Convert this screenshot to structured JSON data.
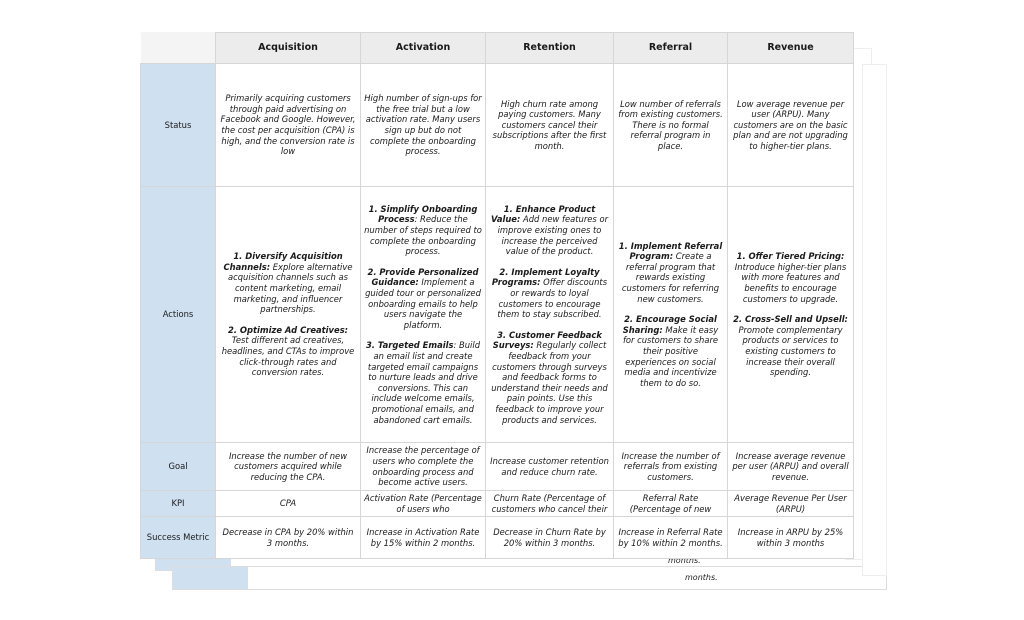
{
  "columns": [
    "Acquisition",
    "Activation",
    "Retention",
    "Referral",
    "Revenue"
  ],
  "rows": {
    "status": {
      "label": "Status",
      "cells": [
        "Primarily acquiring customers through paid advertising on Facebook and Google. However, the cost per acquisition (CPA) is high, and the conversion rate is low",
        "High number of sign-ups for the free trial but a low activation rate. Many users sign up but do not complete the onboarding process.",
        "High churn rate among paying customers. Many customers cancel their subscriptions after the first month.",
        "Low number of referrals from existing customers. There is no formal referral program in place.",
        "Low average revenue per user (ARPU). Many customers are on the basic plan and are not upgrading to higher-tier plans."
      ]
    },
    "actions": {
      "label": "Actions",
      "cells": [
        [
          {
            "title": "1. Diversify Acquisition Channels:",
            "text": " Explore alternative acquisition channels such as content marketing, email marketing, and influencer partnerships."
          },
          {
            "title": "2. Optimize Ad Creatives:",
            "text": " Test different ad creatives, headlines, and CTAs to improve click-through rates and conversion rates."
          }
        ],
        [
          {
            "title": "1. Simplify Onboarding Process",
            "text": ": Reduce the number of steps required to complete the onboarding process."
          },
          {
            "title": "2. Provide Personalized Guidance:",
            "text": " Implement a guided tour or personalized onboarding emails to help users navigate the platform."
          },
          {
            "title": "3. Targeted Emails",
            "text": ": Build an email list and create targeted email campaigns to nurture leads and drive conversions. This can include welcome emails, promotional emails, and abandoned cart emails."
          }
        ],
        [
          {
            "title": "1. Enhance Product Value:",
            "text": " Add new features or improve existing ones to increase the perceived value of the product."
          },
          {
            "title": "2. Implement Loyalty Programs:",
            "text": " Offer discounts or rewards to loyal customers to encourage them to stay subscribed."
          },
          {
            "title": "3. Customer Feedback Surveys:",
            "text": " Regularly collect feedback from your customers through surveys and feedback forms to understand their needs and pain points. Use this feedback to improve your products and services."
          }
        ],
        [
          {
            "title": "1. Implement Referral Program:",
            "text": " Create a referral program that rewards existing customers for referring new customers."
          },
          {
            "title": "2. Encourage Social Sharing:",
            "text": " Make it easy for customers to share their positive experiences on social media and incentivize them to do so."
          }
        ],
        [
          {
            "title": "1. Offer Tiered Pricing:",
            "text": " Introduce higher-tier plans with more features and benefits to encourage customers to upgrade."
          },
          {
            "title": "2. Cross-Sell and Upsell:",
            "text": " Promote complementary products or services to existing customers to increase their overall spending."
          }
        ]
      ]
    },
    "goal": {
      "label": "Goal",
      "cells": [
        "Increase the number of new customers acquired while reducing the CPA.",
        "Increase the percentage of users who complete the onboarding process and become active users.",
        "Increase customer retention and reduce churn rate.",
        "Increase the number of referrals from existing customers.",
        "Increase average revenue per user (ARPU) and overall revenue."
      ]
    },
    "kpi": {
      "label": "KPI",
      "cells": [
        "CPA",
        "Activation Rate (Percentage of users who",
        "Churn Rate (Percentage of customers who cancel their",
        "Referral Rate (Percentage of new",
        "Average Revenue Per User (ARPU)"
      ]
    },
    "success": {
      "label": "Success Metric",
      "cells": [
        "Decrease in CPA by 20% within 3 months.",
        "Increase in Activation Rate by 15% within 2 months.",
        "Decrease in Churn Rate by 20% within 3 months.",
        "Increase in Referral Rate by 10% within 2 months.",
        "Increase in ARPU by 25% within 3 months"
      ]
    }
  },
  "ghost_fragment": "months."
}
